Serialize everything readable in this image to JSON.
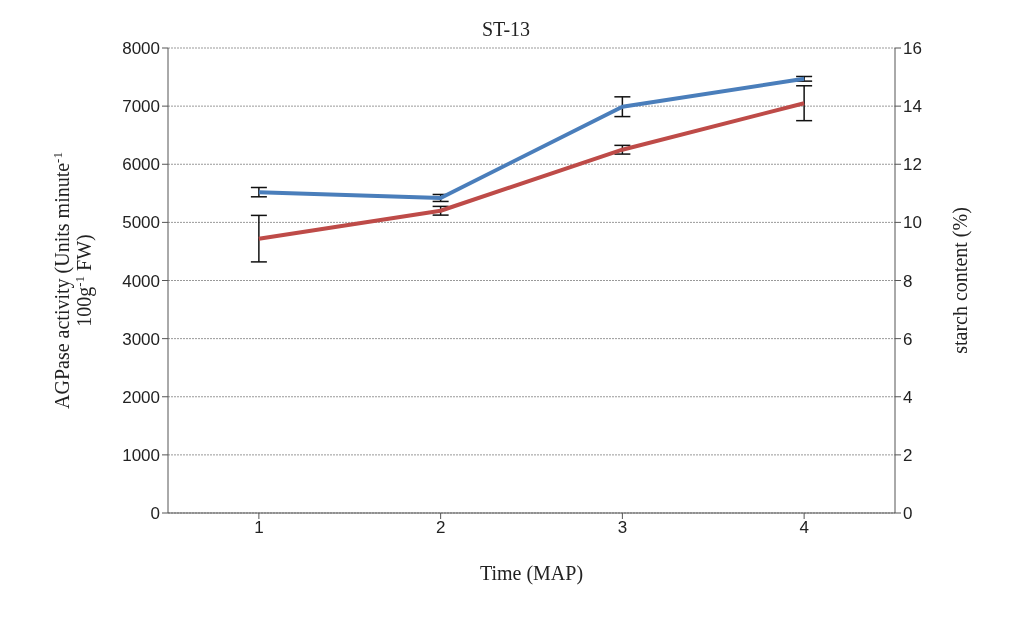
{
  "chart_data": {
    "type": "line",
    "title": "ST-13",
    "xlabel": "Time (MAP)",
    "ylabel": "AGPase activity  (Units minute$^{-1}$ 100g$^{-1}$ FW)",
    "y2label": "starch content (%)",
    "categories": [
      "1",
      "2",
      "3",
      "4"
    ],
    "series": [
      {
        "color": "#4a7ebb",
        "values": [
          5520,
          5420,
          6990,
          7470
        ],
        "errors": [
          80,
          60,
          170,
          40
        ]
      },
      {
        "color": "#be4b48",
        "axis": "y2",
        "values": [
          9.44,
          10.4,
          12.5,
          14.1
        ],
        "errors": [
          0.8,
          0.15,
          0.15,
          0.6
        ]
      }
    ],
    "ylim": [
      0,
      8000
    ],
    "yticks": [
      0,
      1000,
      2000,
      3000,
      4000,
      5000,
      6000,
      7000,
      8000
    ],
    "y2lim": [
      0,
      16
    ],
    "y2ticks": [
      0,
      2,
      4,
      6,
      8,
      10,
      12,
      14,
      16
    ],
    "grid": "y",
    "marker": "none",
    "line_style": "solid"
  }
}
